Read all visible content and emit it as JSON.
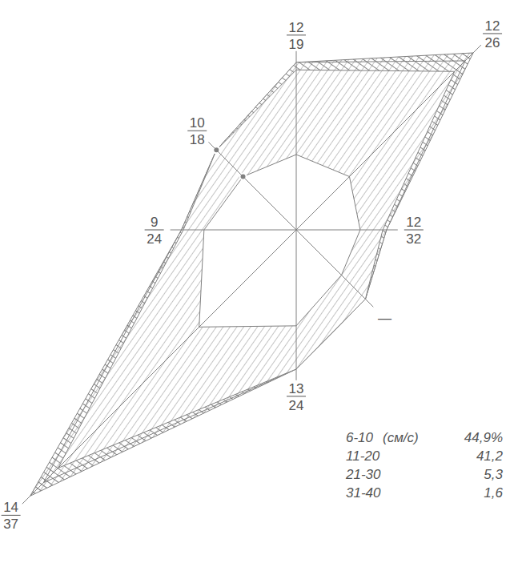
{
  "chart_data": {
    "type": "radar",
    "tick_labels": false,
    "rlim": [
      0,
      100
    ],
    "stacked": true,
    "direction_labels": [
      [
        "12",
        "19"
      ],
      [
        "12",
        "26"
      ],
      [
        "12",
        "32"
      ],
      [
        "—"
      ],
      [
        "13",
        "24"
      ],
      [
        "14",
        "37"
      ],
      [
        "9",
        "24"
      ],
      [
        "10",
        "18"
      ]
    ],
    "unit": "(см/с)",
    "series": [
      {
        "name": "6-10",
        "share": "44,9%",
        "color": "#ffffff",
        "values": [
          20,
          20,
          17,
          17,
          25.5,
          36.5,
          24.5,
          20
        ]
      },
      {
        "name": "11-20",
        "share": "41,2",
        "color": "#8a8a8a",
        "values": [
          22.5,
          39.5,
          6,
          9,
          11.5,
          53,
          5.5,
          10
        ]
      },
      {
        "name": "21-30",
        "share": "5,3",
        "color": "#8a8a8a",
        "values": [
          2,
          4,
          1,
          0,
          0,
          5.5,
          0.5,
          0
        ]
      },
      {
        "name": "31-40",
        "share": "1,6",
        "color": "#7a7a7a",
        "values": [
          0,
          3,
          0,
          0,
          0,
          5,
          0,
          0
        ]
      }
    ]
  }
}
